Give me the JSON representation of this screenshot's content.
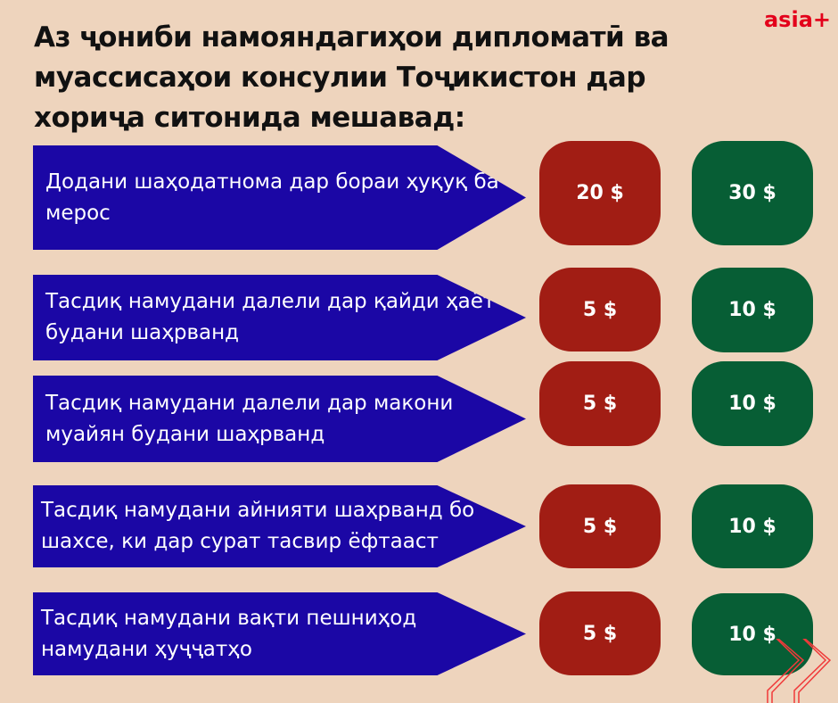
{
  "logo": "asia+",
  "title": "Аз ҷониби намояндагиҳои дипломатӣ ва муассисаҳои консулии Тоҷикистон дар хориҷа ситонида мешавад:",
  "colors": {
    "background": "#EED4BD",
    "service": "#1B07A5",
    "fee_red": "#A11D14",
    "fee_green": "#075E35"
  },
  "rows": [
    {
      "service": "Додани шаҳодатнома дар бораи ҳуқуқ ба мерос",
      "fee_red": "20 $",
      "fee_green": "30 $"
    },
    {
      "service": "Тасдиқ намудани далели дар қайди ҳаёт будани шаҳрванд",
      "fee_red": "5 $",
      "fee_green": "10 $"
    },
    {
      "service": "Тасдиқ намудани далели дар макони муайян будани шаҳрванд",
      "fee_red": "5 $",
      "fee_green": "10 $"
    },
    {
      "service": "Тасдиқ намудани айнияти шаҳрванд бо шахсе, ки дар сурат тасвир ёфтааст",
      "fee_red": "5 $",
      "fee_green": "10 $"
    },
    {
      "service": "Тасдиқ намудани вақти пешниҳод намудани ҳуҷҷатҳо",
      "fee_red": "5 $",
      "fee_green": "10 $"
    }
  ]
}
